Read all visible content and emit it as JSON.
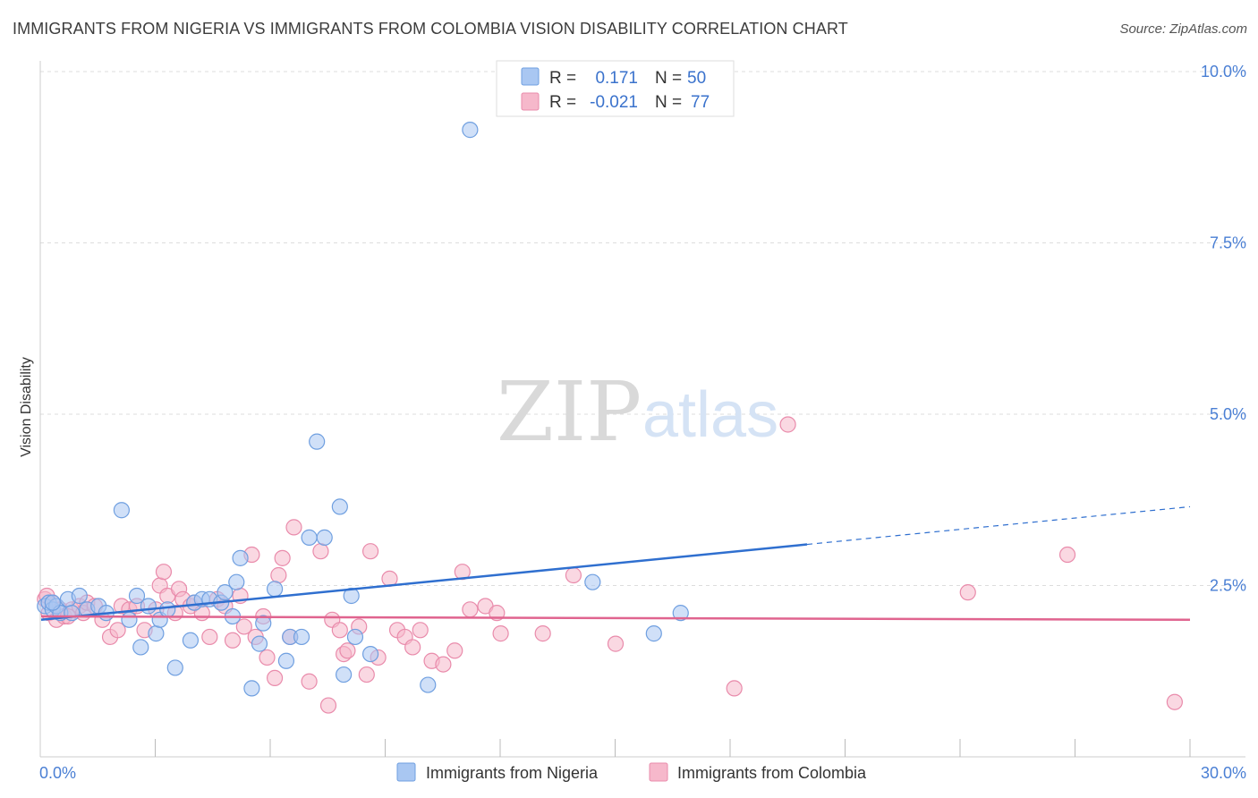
{
  "title": "IMMIGRANTS FROM NIGERIA VS IMMIGRANTS FROM COLOMBIA VISION DISABILITY CORRELATION CHART",
  "source": "Source: ZipAtlas.com",
  "watermark": {
    "zip": "ZIP",
    "atlas": "atlas"
  },
  "colors": {
    "nigeria_fill": "#a9c7f2",
    "nigeria_stroke": "#6f9fe0",
    "nigeria_line": "#2f6fcf",
    "colombia_fill": "#f6b8cb",
    "colombia_stroke": "#e98bab",
    "colombia_line": "#e0648f",
    "tick_label": "#4a7fd4",
    "grid": "#dddddd"
  },
  "legend_top": {
    "nigeria": {
      "r_label": "R =",
      "r_value": "0.171",
      "n_label": "N =",
      "n_value": "50"
    },
    "colombia": {
      "r_label": "R =",
      "r_value": "-0.021",
      "n_label": "N =",
      "n_value": "77"
    }
  },
  "chart_data": {
    "type": "scatter",
    "title": "IMMIGRANTS FROM NIGERIA VS IMMIGRANTS FROM COLOMBIA VISION DISABILITY CORRELATION CHART",
    "xlabel": "",
    "ylabel": "Vision Disability",
    "xlim": [
      0,
      30
    ],
    "ylim": [
      0,
      10.5
    ],
    "x_tick_labels": [
      {
        "value": 0,
        "label": "0.0%"
      },
      {
        "value": 30,
        "label": "30.0%"
      }
    ],
    "y_tick_labels": [
      {
        "value": 2.5,
        "label": "2.5%"
      },
      {
        "value": 5.0,
        "label": "5.0%"
      },
      {
        "value": 7.5,
        "label": "7.5%"
      },
      {
        "value": 10.0,
        "label": "10.0%"
      }
    ],
    "grid": true,
    "legend_placement": "bottom-center",
    "series": [
      {
        "name": "Immigrants from Nigeria",
        "r": 0.171,
        "n": 50,
        "trend": {
          "x0": 0,
          "y0": 2.0,
          "x1": 20,
          "y1": 3.1,
          "dashed_to_x": 30,
          "dashed_to_y": 3.65
        },
        "points": [
          [
            0.1,
            2.2
          ],
          [
            0.2,
            2.25
          ],
          [
            0.3,
            2.15
          ],
          [
            0.4,
            2.2
          ],
          [
            0.5,
            2.1
          ],
          [
            0.7,
            2.3
          ],
          [
            0.8,
            2.1
          ],
          [
            1.0,
            2.35
          ],
          [
            1.2,
            2.15
          ],
          [
            1.5,
            2.2
          ],
          [
            1.7,
            2.1
          ],
          [
            2.1,
            3.6
          ],
          [
            2.3,
            2.0
          ],
          [
            2.5,
            2.35
          ],
          [
            2.6,
            1.6
          ],
          [
            2.8,
            2.2
          ],
          [
            3.0,
            1.8
          ],
          [
            3.1,
            2.0
          ],
          [
            3.3,
            2.15
          ],
          [
            3.5,
            1.3
          ],
          [
            3.9,
            1.7
          ],
          [
            4.0,
            2.25
          ],
          [
            4.2,
            2.3
          ],
          [
            4.4,
            2.3
          ],
          [
            4.7,
            2.25
          ],
          [
            4.8,
            2.4
          ],
          [
            5.0,
            2.05
          ],
          [
            5.1,
            2.55
          ],
          [
            5.2,
            2.9
          ],
          [
            5.5,
            1.0
          ],
          [
            5.7,
            1.65
          ],
          [
            5.8,
            1.95
          ],
          [
            6.1,
            2.45
          ],
          [
            6.4,
            1.4
          ],
          [
            6.5,
            1.75
          ],
          [
            6.8,
            1.75
          ],
          [
            7.0,
            3.2
          ],
          [
            7.2,
            4.6
          ],
          [
            7.4,
            3.2
          ],
          [
            7.8,
            3.65
          ],
          [
            7.9,
            1.2
          ],
          [
            8.1,
            2.35
          ],
          [
            8.2,
            1.75
          ],
          [
            8.6,
            1.5
          ],
          [
            10.1,
            1.05
          ],
          [
            11.2,
            9.15
          ],
          [
            14.4,
            2.55
          ],
          [
            16.0,
            1.8
          ],
          [
            16.7,
            2.1
          ],
          [
            0.3,
            2.25
          ]
        ]
      },
      {
        "name": "Immigrants from Colombia",
        "r": -0.021,
        "n": 77,
        "trend": {
          "x0": 0,
          "y0": 2.05,
          "x1": 30,
          "y1": 2.0
        },
        "points": [
          [
            0.1,
            2.3
          ],
          [
            0.2,
            2.1
          ],
          [
            0.3,
            2.25
          ],
          [
            0.4,
            2.0
          ],
          [
            0.5,
            2.15
          ],
          [
            0.6,
            2.05
          ],
          [
            0.8,
            2.15
          ],
          [
            1.0,
            2.2
          ],
          [
            1.1,
            2.1
          ],
          [
            1.2,
            2.25
          ],
          [
            1.4,
            2.2
          ],
          [
            1.6,
            2.0
          ],
          [
            1.8,
            1.75
          ],
          [
            2.0,
            1.85
          ],
          [
            2.1,
            2.2
          ],
          [
            2.3,
            2.15
          ],
          [
            2.5,
            2.2
          ],
          [
            2.7,
            1.85
          ],
          [
            3.0,
            2.15
          ],
          [
            3.1,
            2.5
          ],
          [
            3.2,
            2.7
          ],
          [
            3.3,
            2.35
          ],
          [
            3.5,
            2.1
          ],
          [
            3.6,
            2.45
          ],
          [
            3.7,
            2.3
          ],
          [
            3.9,
            2.2
          ],
          [
            4.0,
            2.25
          ],
          [
            4.2,
            2.1
          ],
          [
            4.4,
            1.75
          ],
          [
            4.6,
            2.3
          ],
          [
            4.8,
            2.2
          ],
          [
            5.0,
            1.7
          ],
          [
            5.2,
            2.35
          ],
          [
            5.3,
            1.9
          ],
          [
            5.5,
            2.95
          ],
          [
            5.6,
            1.75
          ],
          [
            5.8,
            2.05
          ],
          [
            5.9,
            1.45
          ],
          [
            6.1,
            1.15
          ],
          [
            6.2,
            2.65
          ],
          [
            6.3,
            2.9
          ],
          [
            6.5,
            1.75
          ],
          [
            6.6,
            3.35
          ],
          [
            7.0,
            1.1
          ],
          [
            7.3,
            3.0
          ],
          [
            7.5,
            0.75
          ],
          [
            7.6,
            2.0
          ],
          [
            7.8,
            1.85
          ],
          [
            7.9,
            1.5
          ],
          [
            8.0,
            1.55
          ],
          [
            8.3,
            1.9
          ],
          [
            8.5,
            1.2
          ],
          [
            8.6,
            3.0
          ],
          [
            8.8,
            1.45
          ],
          [
            9.1,
            2.6
          ],
          [
            9.3,
            1.85
          ],
          [
            9.5,
            1.75
          ],
          [
            9.7,
            1.6
          ],
          [
            9.9,
            1.85
          ],
          [
            10.2,
            1.4
          ],
          [
            10.5,
            1.35
          ],
          [
            10.8,
            1.55
          ],
          [
            11.0,
            2.7
          ],
          [
            11.2,
            2.15
          ],
          [
            11.6,
            2.2
          ],
          [
            11.9,
            2.1
          ],
          [
            12.0,
            1.8
          ],
          [
            13.1,
            1.8
          ],
          [
            13.9,
            2.65
          ],
          [
            15.0,
            1.65
          ],
          [
            18.1,
            1.0
          ],
          [
            19.5,
            4.85
          ],
          [
            24.2,
            2.4
          ],
          [
            26.8,
            2.95
          ],
          [
            29.6,
            0.8
          ],
          [
            0.15,
            2.35
          ],
          [
            0.7,
            2.05
          ]
        ]
      }
    ]
  },
  "legend_bottom": {
    "nigeria": "Immigrants from Nigeria",
    "colombia": "Immigrants from Colombia"
  }
}
